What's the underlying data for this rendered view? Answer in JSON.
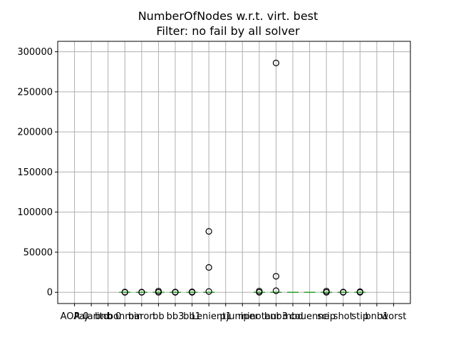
{
  "chart_data": {
    "type": "box",
    "title": "NumberOfNodes w.r.t. virt. best",
    "subtitle": "Filter: no fail by all solver",
    "xlabel": "",
    "ylabel": "",
    "ylim": [
      -14000,
      313000
    ],
    "yticks": [
      0,
      50000,
      100000,
      150000,
      200000,
      250000,
      300000
    ],
    "ytick_labels": [
      "0",
      "50000",
      "100000",
      "150000",
      "200000",
      "250000",
      "300000"
    ],
    "grid": true,
    "legend": "none",
    "colors": {
      "median": "#2ca02c",
      "outlier_edge": "#000000",
      "grid": "#b0b0b0"
    },
    "categories": [
      "AOA 0",
      "Pajarito",
      "bnb 0",
      "bonmin",
      "baron",
      "bb",
      "bb3",
      "bb1",
      "Lenient",
      "p1",
      "juniper",
      "minotaur",
      "bnb3",
      "mbd",
      "couenne",
      "scip",
      "shot",
      "stip",
      "bnb1",
      "worst"
    ],
    "series": [
      {
        "category": "AOA 0",
        "median": null,
        "outliers": []
      },
      {
        "category": "Pajarito",
        "median": null,
        "outliers": []
      },
      {
        "category": "bnb 0",
        "median": null,
        "outliers": []
      },
      {
        "category": "bonmin",
        "median": 0,
        "outliers": [
          0,
          300
        ]
      },
      {
        "category": "baron",
        "median": 0,
        "outliers": [
          0,
          200
        ]
      },
      {
        "category": "bb",
        "median": 0,
        "outliers": [
          0,
          1500
        ]
      },
      {
        "category": "bb3",
        "median": 0,
        "outliers": [
          0,
          400
        ]
      },
      {
        "category": "bb1",
        "median": 0,
        "outliers": [
          0,
          600
        ]
      },
      {
        "category": "Lenient",
        "median": 0,
        "outliers": [
          1000,
          31000,
          76000
        ]
      },
      {
        "category": "p1",
        "median": null,
        "outliers": []
      },
      {
        "category": "juniper",
        "median": null,
        "outliers": []
      },
      {
        "category": "minotaur",
        "median": 0,
        "outliers": [
          0,
          1500
        ]
      },
      {
        "category": "bnb3",
        "median": 0,
        "outliers": [
          2000,
          20000,
          286000
        ]
      },
      {
        "category": "mbd",
        "median": 0,
        "outliers": []
      },
      {
        "category": "couenne",
        "median": 0,
        "outliers": []
      },
      {
        "category": "scip",
        "median": 0,
        "outliers": [
          0,
          1500
        ]
      },
      {
        "category": "shot",
        "median": 0,
        "outliers": [
          0,
          300
        ]
      },
      {
        "category": "stip",
        "median": 0,
        "outliers": [
          0,
          800
        ]
      },
      {
        "category": "bnb1",
        "median": null,
        "outliers": []
      },
      {
        "category": "worst",
        "median": null,
        "outliers": []
      }
    ]
  }
}
